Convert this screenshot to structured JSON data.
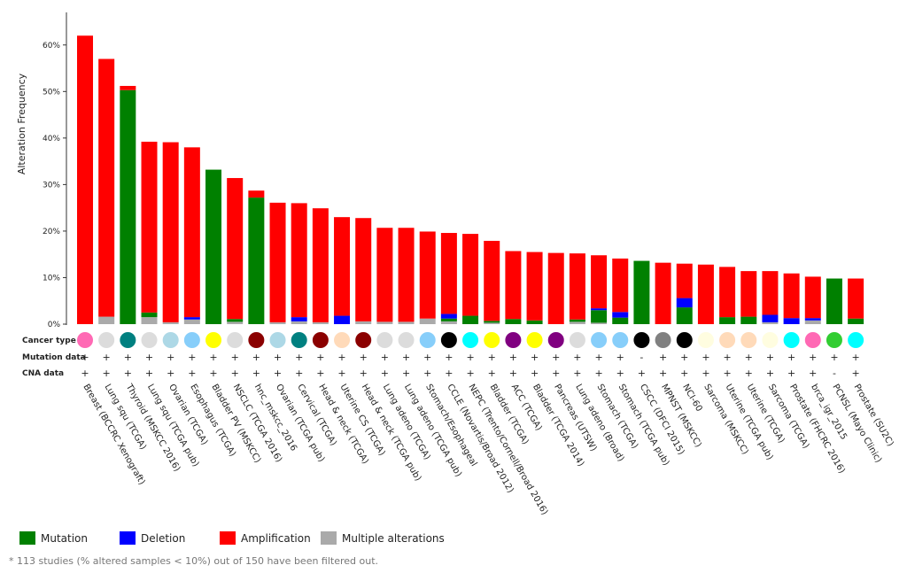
{
  "chart_data": {
    "type": "bar",
    "y_label": "Alteration Frequency",
    "ylim": [
      0,
      67
    ],
    "yticks": [
      {
        "value": 0,
        "label": "0%"
      },
      {
        "value": 10,
        "label": "10%"
      },
      {
        "value": 20,
        "label": "20%"
      },
      {
        "value": 30,
        "label": "30%"
      },
      {
        "value": 40,
        "label": "40%"
      },
      {
        "value": 50,
        "label": "50%"
      },
      {
        "value": 60,
        "label": "60%"
      }
    ],
    "categories": [
      "Breast (BCCRC Xenograft)",
      "Lung squ (TCGA)",
      "Thyroid (MSKCC 2016)",
      "Lung squ (TCGA pub)",
      "Ovarian (TCGA)",
      "Esophagus (TCGA)",
      "Bladder PV (MSKCC)",
      "NSCLC (TCGA 2016)",
      "hnc_mskcc_2016",
      "Ovarian (TCGA pub)",
      "Cervical (TCGA)",
      "Head & neck (TCGA)",
      "Uterine CS (TCGA)",
      "Head & neck (TCGA pub)",
      "Lung adeno (TCGA)",
      "Lung adeno (TCGA pub)",
      "Stomach/Esophageal",
      "CCLE (Novartis/Broad 2012)",
      "NEPC (Trento/Cornell/Broad 2016)",
      "Bladder (TCGA)",
      "ACC (TCGA)",
      "Bladder (TCGA 2014)",
      "Pancreas (UTSW)",
      "Lung adeno (Broad)",
      "Stomach (TCGA)",
      "Stomach (TCGA pub)",
      "CSCC (DFCI 2015)",
      "MPNST (MSKCC)",
      "NCI-60",
      "Sarcoma (MSKCC)",
      "Uterine (TCGA pub)",
      "Uterine (TCGA)",
      "Sarcoma (TCGA)",
      "Prostate (FHCRC 2016)",
      "brca_igr_2015",
      "PCNSL (Mayo Clinic)",
      "Prostate (SU2C)"
    ],
    "series": [
      {
        "name": "Mutation",
        "color": "#008000",
        "values": [
          0,
          0,
          50.3,
          1.0,
          0,
          0,
          33.2,
          0.6,
          27.2,
          0,
          0,
          0,
          0,
          0,
          0,
          0,
          0,
          0.6,
          1.8,
          0.4,
          1.1,
          0.8,
          0,
          0.5,
          2.7,
          1.4,
          13.6,
          0,
          3.6,
          0,
          1.5,
          1.6,
          0,
          0,
          0,
          9.8,
          1.2
        ]
      },
      {
        "name": "Deletion",
        "color": "#0000ff",
        "values": [
          0,
          0,
          0,
          0,
          0,
          0.5,
          0,
          0,
          0,
          0,
          0.9,
          0,
          1.8,
          0,
          0,
          0,
          0,
          1.0,
          0,
          0,
          0,
          0,
          0,
          0,
          0.4,
          1.2,
          0,
          0,
          2.0,
          0,
          0,
          0,
          1.6,
          1.3,
          0.5,
          0,
          0
        ]
      },
      {
        "name": "Amplification",
        "color": "#ff0000",
        "values": [
          62,
          55.4,
          0.9,
          36.7,
          38.7,
          36.5,
          0,
          30.3,
          1.5,
          25.7,
          24.5,
          24.5,
          21.2,
          22.2,
          20.2,
          20.2,
          18.7,
          17.4,
          17.6,
          17.2,
          14.6,
          14.7,
          15.3,
          14.2,
          11.4,
          11.5,
          0,
          13.2,
          7.4,
          12.8,
          10.8,
          9.8,
          9.4,
          9.6,
          8.9,
          0,
          8.6
        ]
      },
      {
        "name": "Multiple alterations",
        "color": "#aaaaaa",
        "values": [
          0,
          1.6,
          0,
          1.5,
          0.4,
          1.0,
          0,
          0.5,
          0,
          0.4,
          0.6,
          0.4,
          0,
          0.6,
          0.5,
          0.5,
          1.2,
          0.6,
          0,
          0.3,
          0,
          0,
          0,
          0.5,
          0.3,
          0,
          0,
          0,
          0,
          0,
          0,
          0,
          0.4,
          0,
          0.8,
          0,
          0
        ]
      }
    ],
    "row_labels": [
      "Cancer type",
      "Mutation data",
      "CNA data"
    ],
    "cancer_type_colors": [
      "#ff69b4",
      "#dcdcdc",
      "#008080",
      "#dcdcdc",
      "#add8e6",
      "#87cefa",
      "#ffff00",
      "#dcdcdc",
      "#8b0000",
      "#add8e6",
      "#008080",
      "#8b0000",
      "#ffdab9",
      "#8b0000",
      "#dcdcdc",
      "#dcdcdc",
      "#87cefa",
      "#000000",
      "#00ffff",
      "#ffff00",
      "#800080",
      "#ffff00",
      "#800080",
      "#dcdcdc",
      "#87cefa",
      "#87cefa",
      "#000000",
      "#808080",
      "#000000",
      "#fffde0",
      "#ffdab9",
      "#ffdab9",
      "#fffde0",
      "#00ffff",
      "#ff69b4",
      "#32cd32",
      "#00ffff"
    ],
    "mutation_data": [
      "+",
      "+",
      "+",
      "+",
      "+",
      "+",
      "+",
      "+",
      "+",
      "+",
      "+",
      "+",
      "+",
      "+",
      "+",
      "+",
      "+",
      "+",
      "+",
      "+",
      "+",
      "+",
      "+",
      "+",
      "+",
      "+",
      "-",
      "+",
      "+",
      "+",
      "+",
      "+",
      "+",
      "+",
      "+",
      "+",
      "+"
    ],
    "cna_data": [
      "+",
      "+",
      "+",
      "+",
      "+",
      "+",
      "+",
      "+",
      "+",
      "+",
      "+",
      "+",
      "+",
      "+",
      "+",
      "+",
      "+",
      "+",
      "+",
      "+",
      "+",
      "+",
      "+",
      "+",
      "+",
      "+",
      "+",
      "+",
      "+",
      "+",
      "+",
      "+",
      "+",
      "+",
      "+",
      "-",
      "+"
    ],
    "footnote": "* 113 studies (% altered samples < 10%) out of 150 have been filtered out."
  }
}
